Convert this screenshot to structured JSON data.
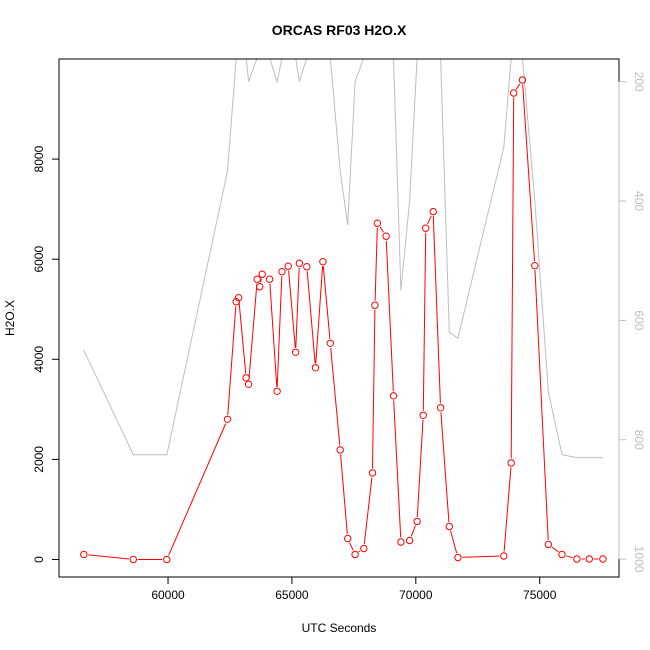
{
  "chart_data": {
    "type": "line",
    "title": "ORCAS RF03 H2O.X",
    "xlabel": "UTC Seconds",
    "ylabel": "H2O.X",
    "xlim": [
      55600,
      78200
    ],
    "ylim": [
      -350,
      10000
    ],
    "y2lim": [
      1030,
      162
    ],
    "y2_reversed": true,
    "x_ticks": [
      60000,
      65000,
      70000,
      75000
    ],
    "x_tick_labels": [
      "60000",
      "65000",
      "70000",
      "75000"
    ],
    "y_ticks": [
      0,
      2000,
      4000,
      6000,
      8000
    ],
    "y_tick_labels": [
      "0",
      "2000",
      "4000",
      "6000",
      "8000"
    ],
    "y2_ticks": [
      200,
      400,
      600,
      800,
      1000
    ],
    "y2_tick_labels": [
      "200",
      "400",
      "600",
      "800",
      "1000"
    ],
    "grid": false,
    "series": [
      {
        "role": "primary",
        "color": "#ff0000",
        "markers": "open-circle",
        "x": [
          56600,
          58600,
          59950,
          62400,
          62750,
          62850,
          63150,
          63250,
          63600,
          63700,
          63800,
          64100,
          64400,
          64600,
          64850,
          65150,
          65300,
          65600,
          65950,
          66250,
          66550,
          66950,
          67250,
          67550,
          67900,
          68250,
          68350,
          68450,
          68800,
          69100,
          69400,
          69750,
          70050,
          70300,
          70400,
          70700,
          71000,
          71350,
          71700,
          73550,
          73850,
          73950,
          74300,
          74800,
          75350,
          75900,
          76500,
          77000,
          77550
        ],
        "values": [
          100,
          0,
          0,
          2800,
          5150,
          5230,
          3630,
          3500,
          5600,
          5450,
          5700,
          5600,
          3360,
          5750,
          5860,
          4140,
          5920,
          5850,
          3830,
          5950,
          4320,
          2190,
          420,
          100,
          220,
          1730,
          5080,
          6720,
          6460,
          3270,
          350,
          380,
          760,
          2880,
          6620,
          6950,
          3030,
          660,
          40,
          70,
          1930,
          9320,
          9580,
          5870,
          300,
          100,
          10,
          10,
          10
        ]
      },
      {
        "role": "secondary-axis",
        "color": "#bebebe",
        "markers": "none",
        "x": [
          56600,
          58600,
          59950,
          62400,
          62750,
          62850,
          63150,
          63250,
          63600,
          63700,
          63800,
          64100,
          64400,
          64600,
          64850,
          65150,
          65300,
          65600,
          65950,
          66250,
          66550,
          66950,
          67250,
          67550,
          67900,
          68250,
          68350,
          68450,
          68800,
          69100,
          69400,
          69750,
          70050,
          70300,
          70400,
          70700,
          71000,
          71350,
          71700,
          73550,
          73850,
          73950,
          74300,
          74800,
          75350,
          75900,
          76500,
          77000,
          77550
        ],
        "values": [
          650,
          825,
          825,
          350,
          160,
          160,
          160,
          200,
          160,
          160,
          160,
          160,
          200,
          160,
          160,
          160,
          200,
          160,
          160,
          160,
          160,
          350,
          440,
          200,
          160,
          160,
          160,
          160,
          160,
          160,
          550,
          400,
          160,
          160,
          160,
          160,
          160,
          620,
          630,
          310,
          160,
          160,
          160,
          400,
          720,
          825,
          830,
          830,
          830
        ]
      }
    ]
  }
}
